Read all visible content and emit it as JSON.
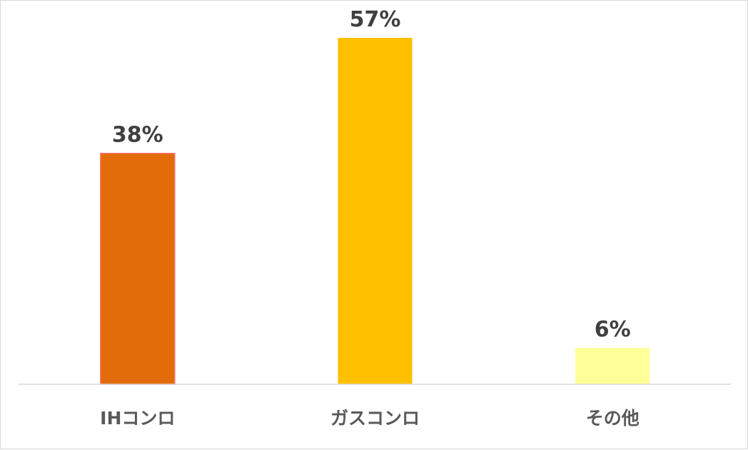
{
  "chart_data": {
    "type": "bar",
    "categories": [
      "IHコンロ",
      "ガスコンロ",
      "その他"
    ],
    "values": [
      38,
      57,
      6
    ],
    "data_labels": [
      "38%",
      "57%",
      "6%"
    ],
    "unit": "%",
    "colors": [
      "#E36C0A",
      "#FFC000",
      "#FFFF99"
    ],
    "title": "",
    "xlabel": "",
    "ylabel": "",
    "ylim": [
      0,
      57
    ],
    "grid": false,
    "legend": "none"
  }
}
